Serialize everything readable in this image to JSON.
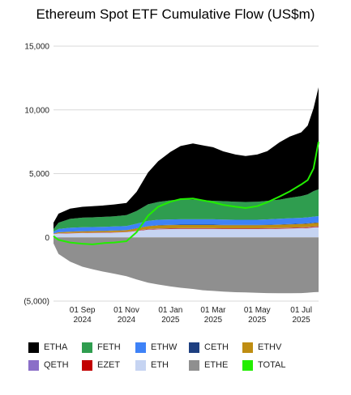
{
  "chart_data": {
    "type": "area",
    "title": "Ethereum Spot ETF Cumulative Flow (US$m)",
    "xlabel": "",
    "ylabel": "",
    "unit": "US$m",
    "ylim": [
      -5000,
      15000
    ],
    "y_ticks": [
      {
        "value": 15000,
        "label": "15,000"
      },
      {
        "value": 10000,
        "label": "10,000"
      },
      {
        "value": 5000,
        "label": "5,000"
      },
      {
        "value": 0,
        "label": "0"
      },
      {
        "value": -5000,
        "label": "(5,000)"
      }
    ],
    "xlim": [
      "2024-07-23",
      "2025-07-25"
    ],
    "x_ticks": [
      {
        "date": "2024-09-01",
        "line1": "01 Sep",
        "line2": "2024"
      },
      {
        "date": "2024-11-01",
        "line1": "01 Nov",
        "line2": "2024"
      },
      {
        "date": "2025-01-01",
        "line1": "01 Jan",
        "line2": "2025"
      },
      {
        "date": "2025-03-01",
        "line1": "01 Mar",
        "line2": "2025"
      },
      {
        "date": "2025-05-01",
        "line1": "01 May",
        "line2": "2025"
      },
      {
        "date": "2025-07-01",
        "line1": "01 Jul",
        "line2": "2025"
      }
    ],
    "grid": "horizontal",
    "legend_position": "bottom",
    "x": [
      "2024-07-23",
      "2024-07-30",
      "2024-08-15",
      "2024-09-01",
      "2024-09-15",
      "2024-10-01",
      "2024-10-15",
      "2024-11-01",
      "2024-11-15",
      "2024-12-01",
      "2024-12-15",
      "2025-01-01",
      "2025-01-15",
      "2025-02-01",
      "2025-02-15",
      "2025-03-01",
      "2025-03-15",
      "2025-04-01",
      "2025-04-15",
      "2025-05-01",
      "2025-05-15",
      "2025-06-01",
      "2025-06-15",
      "2025-07-01",
      "2025-07-10",
      "2025-07-18",
      "2025-07-25"
    ],
    "series": [
      {
        "name": "ETH",
        "color": "#c6d4f2",
        "values": [
          250,
          300,
          320,
          340,
          350,
          360,
          380,
          400,
          500,
          600,
          640,
          650,
          660,
          660,
          660,
          660,
          650,
          650,
          650,
          650,
          660,
          680,
          700,
          720,
          740,
          780,
          800
        ]
      },
      {
        "name": "ETHE",
        "color": "#8f8f8f",
        "values": [
          -480,
          -1300,
          -1900,
          -2300,
          -2500,
          -2700,
          -2850,
          -3050,
          -3300,
          -3550,
          -3700,
          -3850,
          -3950,
          -4050,
          -4150,
          -4200,
          -4250,
          -4300,
          -4320,
          -4350,
          -4370,
          -4380,
          -4380,
          -4370,
          -4340,
          -4300,
          -4290
        ]
      },
      {
        "name": "EZET",
        "color": "#c20000",
        "values": [
          10,
          15,
          18,
          20,
          20,
          22,
          22,
          23,
          25,
          30,
          32,
          35,
          36,
          36,
          36,
          36,
          36,
          36,
          36,
          36,
          37,
          38,
          39,
          40,
          41,
          42,
          43
        ]
      },
      {
        "name": "QETH",
        "color": "#8b6fc8",
        "values": [
          5,
          10,
          12,
          14,
          14,
          14,
          14,
          15,
          18,
          20,
          22,
          24,
          24,
          24,
          24,
          24,
          24,
          24,
          24,
          24,
          24,
          24,
          25,
          25,
          26,
          27,
          27
        ]
      },
      {
        "name": "ETHV",
        "color": "#bf8d12",
        "values": [
          30,
          70,
          90,
          100,
          100,
          105,
          110,
          120,
          160,
          220,
          240,
          250,
          250,
          250,
          250,
          250,
          245,
          240,
          240,
          240,
          245,
          250,
          255,
          260,
          265,
          270,
          275
        ]
      },
      {
        "name": "CETH",
        "color": "#1e3f80",
        "values": [
          5,
          10,
          12,
          14,
          15,
          16,
          16,
          17,
          20,
          24,
          26,
          28,
          28,
          28,
          28,
          28,
          28,
          28,
          28,
          28,
          29,
          29,
          30,
          30,
          31,
          32,
          32
        ]
      },
      {
        "name": "ETHW",
        "color": "#3e82f7",
        "values": [
          150,
          250,
          300,
          310,
          310,
          310,
          310,
          320,
          350,
          400,
          420,
          420,
          420,
          420,
          420,
          420,
          410,
          400,
          400,
          400,
          420,
          440,
          450,
          460,
          470,
          480,
          490
        ]
      },
      {
        "name": "FETH",
        "color": "#2f9d4f",
        "values": [
          200,
          500,
          700,
          750,
          760,
          780,
          800,
          850,
          1000,
          1300,
          1400,
          1500,
          1550,
          1550,
          1500,
          1450,
          1450,
          1420,
          1400,
          1420,
          1450,
          1500,
          1600,
          1700,
          1800,
          2000,
          2100
        ]
      },
      {
        "name": "ETHA",
        "color": "#000000",
        "values": [
          500,
          700,
          800,
          850,
          880,
          900,
          930,
          950,
          1500,
          2500,
          3200,
          3800,
          4200,
          4400,
          4300,
          4200,
          3900,
          3700,
          3600,
          3700,
          3900,
          4500,
          4800,
          5000,
          5400,
          6500,
          8000
        ]
      }
    ],
    "total": {
      "name": "TOTAL",
      "color": "#22ee00",
      "values": [
        100,
        -200,
        -400,
        -500,
        -550,
        -450,
        -400,
        -300,
        400,
        1700,
        2400,
        2800,
        3000,
        3050,
        2900,
        2750,
        2550,
        2400,
        2300,
        2450,
        2750,
        3200,
        3600,
        4150,
        4500,
        5400,
        7500
      ]
    },
    "legend": [
      [
        {
          "name": "ETHA",
          "color": "#000000"
        },
        {
          "name": "FETH",
          "color": "#2f9d4f"
        },
        {
          "name": "ETHW",
          "color": "#3e82f7"
        },
        {
          "name": "CETH",
          "color": "#1e3f80"
        },
        {
          "name": "ETHV",
          "color": "#bf8d12"
        }
      ],
      [
        {
          "name": "QETH",
          "color": "#8b6fc8"
        },
        {
          "name": "EZET",
          "color": "#c20000"
        },
        {
          "name": "ETH",
          "color": "#c6d4f2"
        },
        {
          "name": "ETHE",
          "color": "#8f8f8f"
        },
        {
          "name": "TOTAL",
          "color": "#22ee00"
        }
      ]
    ]
  }
}
